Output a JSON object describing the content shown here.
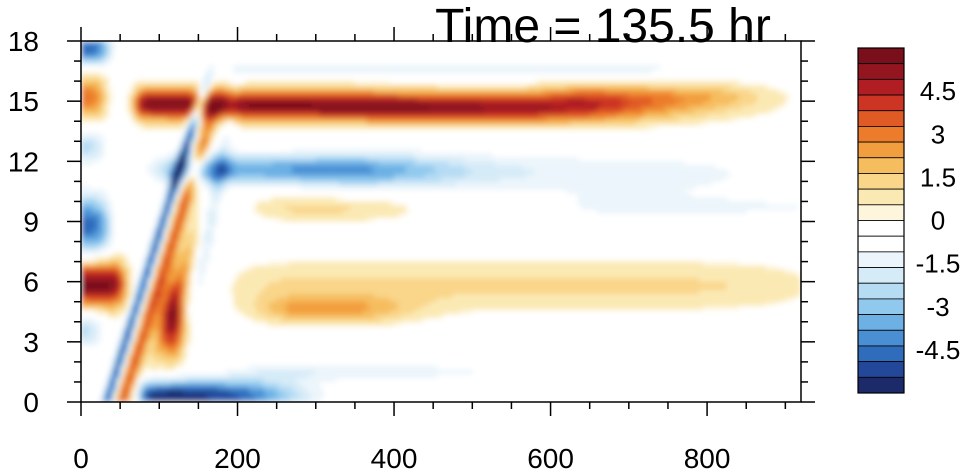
{
  "chart_data": {
    "type": "heatmap",
    "title": "Time = 135.5 hr",
    "xlabel": "",
    "ylabel": "",
    "xlim": [
      0,
      920
    ],
    "ylim": [
      0,
      18
    ],
    "x_ticks": [
      "0",
      "200",
      "400",
      "600",
      "800"
    ],
    "x_tick_values": [
      0,
      200,
      400,
      600,
      800
    ],
    "y_ticks": [
      "0",
      "3",
      "6",
      "9",
      "12",
      "15",
      "18"
    ],
    "y_tick_values": [
      0,
      3,
      6,
      9,
      12,
      15,
      18
    ],
    "colorbar": {
      "min": -6,
      "max": 6,
      "step": 0.5,
      "labels": [
        "4.5",
        "3",
        "1.5",
        "0",
        "-1.5",
        "-3",
        "-4.5"
      ],
      "label_values": [
        4.5,
        3,
        1.5,
        0,
        -1.5,
        -3,
        -4.5
      ],
      "colors": [
        "#1c2a6a",
        "#23489a",
        "#2f6cbc",
        "#4a8fd4",
        "#6cb0e4",
        "#91c9ee",
        "#b6dcf4",
        "#d6ebf8",
        "#ebf5fb",
        "#ffffff",
        "#ffffff",
        "#fdf6dd",
        "#fbe9b4",
        "#f9d68a",
        "#f6bd5e",
        "#f29e3e",
        "#ec7c2c",
        "#e05a25",
        "#cc3424",
        "#b01e24",
        "#921520",
        "#7a0f1c"
      ]
    },
    "features": [
      {
        "name": "upper-red-band",
        "x": [
          60,
          900
        ],
        "y": 15.0,
        "peak_value": 5.5,
        "decay_x": 780
      },
      {
        "name": "upper-blue-band",
        "x": [
          90,
          900
        ],
        "y": 11.7,
        "peak_value": -4.0
      },
      {
        "name": "surface-blue-band",
        "x": [
          70,
          330
        ],
        "y": 0.4,
        "peak_value": -5.5
      },
      {
        "name": "mid-red-patch",
        "x": [
          0,
          60
        ],
        "y": 5.8,
        "peak_value": 5.5
      },
      {
        "name": "mid-orange-band",
        "x": [
          80,
          900
        ],
        "y": 4.5,
        "peak_value": 2.0
      },
      {
        "name": "left-blue-patch",
        "x": [
          0,
          40
        ],
        "y": 9.0,
        "peak_value": -4.5
      },
      {
        "name": "top-blue-patch",
        "x": [
          0,
          40
        ],
        "y": 17.6,
        "peak_value": -5.0
      }
    ]
  }
}
